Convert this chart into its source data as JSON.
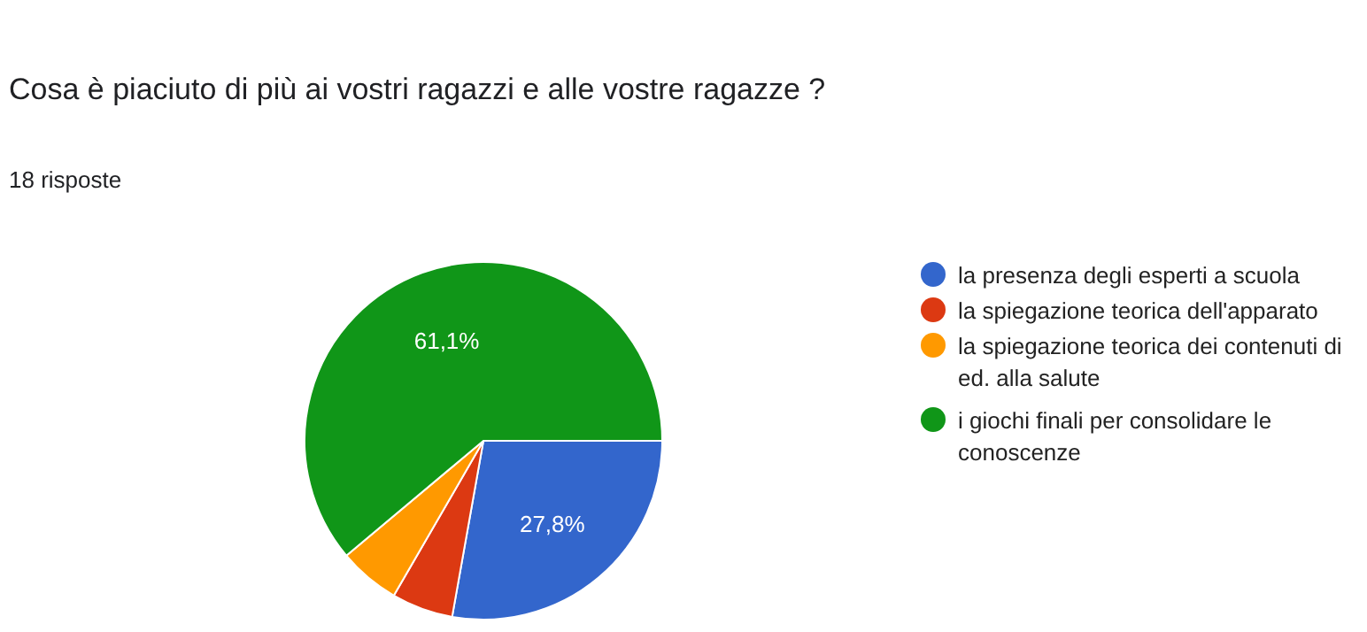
{
  "chart_data": {
    "type": "pie",
    "title": "Cosa è piaciuto di più ai vostri ragazzi e alle vostre ragazze ?",
    "subtitle": "18 risposte",
    "categories": [
      "la presenza degli esperti a scuola",
      "la spiegazione teorica dell'apparato",
      "la spiegazione teorica dei contenuti di ed. alla salute",
      "i giochi finali per consolidare le conoscenze"
    ],
    "values": [
      27.8,
      5.55,
      5.55,
      61.1
    ],
    "colors": [
      "#3366cc",
      "#dc3912",
      "#ff9900",
      "#109618"
    ],
    "value_labels": [
      "27,8%",
      null,
      null,
      "61,1%"
    ],
    "legend": "right"
  }
}
